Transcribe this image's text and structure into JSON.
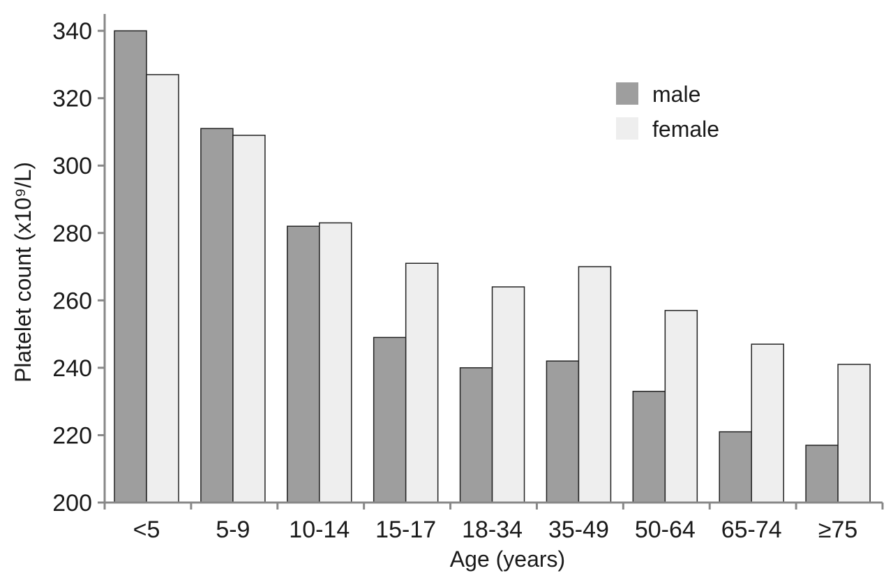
{
  "chart_data": {
    "type": "bar",
    "title": "",
    "xlabel": "Age (years)",
    "ylabel": "Platelet count (x10⁹/L)",
    "ylim": [
      200,
      345
    ],
    "yticks": [
      200,
      220,
      240,
      260,
      280,
      300,
      320,
      340
    ],
    "categories": [
      "<5",
      "5-9",
      "10-14",
      "15-17",
      "18-34",
      "35-49",
      "50-64",
      "65-74",
      "≥75"
    ],
    "series": [
      {
        "name": "male",
        "color": "#9e9e9e",
        "values": [
          340,
          311,
          282,
          249,
          240,
          242,
          233,
          221,
          217
        ]
      },
      {
        "name": "female",
        "color": "#eeeeee",
        "values": [
          327,
          309,
          283,
          271,
          264,
          270,
          257,
          247,
          241
        ]
      }
    ],
    "legend_position": "top-right",
    "grid": false
  }
}
